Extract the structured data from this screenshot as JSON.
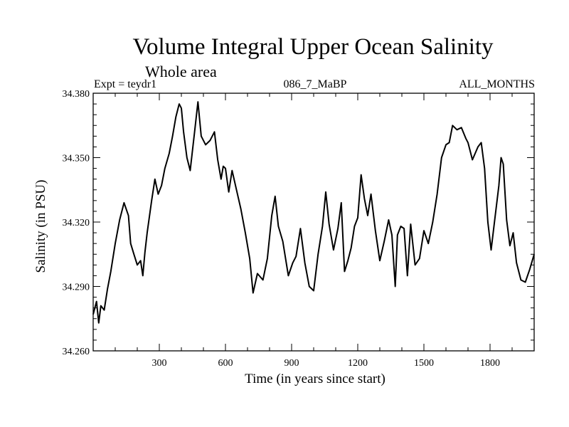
{
  "chart_data": {
    "type": "line",
    "title": "Volume Integral Upper Ocean Salinity",
    "subtitle": "Whole area",
    "info_left": "Expt = teydr1",
    "info_center": "086_7_MaBP",
    "info_right": "ALL_MONTHS",
    "xlabel": "Time (in years since start)",
    "ylabel": "Salinity (in PSU)",
    "xlim": [
      0,
      2000
    ],
    "ylim": [
      34.26,
      34.38
    ],
    "xticks": [
      "300",
      "600",
      "900",
      "1200",
      "1500",
      "1800"
    ],
    "xtick_values": [
      300,
      600,
      900,
      1200,
      1500,
      1800
    ],
    "yticks": [
      "34.260",
      "34.290",
      "34.320",
      "34.350",
      "34.380"
    ],
    "ytick_values": [
      34.26,
      34.29,
      34.32,
      34.35,
      34.38
    ],
    "series": [
      {
        "color": "#000000",
        "x": [
          0,
          15,
          25,
          35,
          50,
          65,
          80,
          100,
          120,
          140,
          160,
          170,
          185,
          200,
          215,
          225,
          235,
          245,
          265,
          280,
          295,
          310,
          325,
          345,
          360,
          375,
          390,
          400,
          410,
          425,
          440,
          460,
          475,
          490,
          510,
          530,
          550,
          565,
          580,
          590,
          600,
          615,
          630,
          650,
          670,
          690,
          710,
          725,
          745,
          770,
          790,
          810,
          825,
          840,
          860,
          885,
          905,
          920,
          940,
          960,
          980,
          1000,
          1020,
          1040,
          1055,
          1070,
          1090,
          1110,
          1125,
          1140,
          1155,
          1170,
          1185,
          1200,
          1215,
          1230,
          1245,
          1260,
          1280,
          1300,
          1320,
          1340,
          1355,
          1370,
          1380,
          1395,
          1410,
          1425,
          1440,
          1460,
          1480,
          1500,
          1520,
          1540,
          1560,
          1580,
          1600,
          1615,
          1630,
          1650,
          1670,
          1690,
          1700,
          1720,
          1745,
          1760,
          1775,
          1790,
          1805,
          1820,
          1840,
          1850,
          1860,
          1875,
          1890,
          1905,
          1920,
          1940,
          1960,
          1980,
          2000
        ],
        "y": [
          34.277,
          34.283,
          34.273,
          34.281,
          34.279,
          34.289,
          34.297,
          34.31,
          34.321,
          34.329,
          34.323,
          34.31,
          34.305,
          34.3,
          34.302,
          34.295,
          34.306,
          34.315,
          34.33,
          34.34,
          34.333,
          34.337,
          34.345,
          34.352,
          34.36,
          34.369,
          34.375,
          34.373,
          34.362,
          34.35,
          34.344,
          34.362,
          34.376,
          34.36,
          34.356,
          34.358,
          34.362,
          34.349,
          34.34,
          34.346,
          34.345,
          34.334,
          34.344,
          34.335,
          34.326,
          34.315,
          34.303,
          34.287,
          34.296,
          34.293,
          34.303,
          34.323,
          34.332,
          34.318,
          34.311,
          34.295,
          34.301,
          34.304,
          34.317,
          34.301,
          34.29,
          34.288,
          34.305,
          34.318,
          34.334,
          34.319,
          34.307,
          34.317,
          34.329,
          34.297,
          34.302,
          34.308,
          34.318,
          34.322,
          34.342,
          34.331,
          34.323,
          34.333,
          34.316,
          34.302,
          34.311,
          34.321,
          34.314,
          34.29,
          34.314,
          34.318,
          34.317,
          34.295,
          34.319,
          34.3,
          34.303,
          34.316,
          34.31,
          34.32,
          34.333,
          34.35,
          34.356,
          34.357,
          34.365,
          34.363,
          34.364,
          34.359,
          34.357,
          34.349,
          34.355,
          34.357,
          34.345,
          34.32,
          34.307,
          34.32,
          34.337,
          34.35,
          34.347,
          34.321,
          34.309,
          34.315,
          34.301,
          34.293,
          34.292,
          34.298,
          34.305
        ]
      }
    ]
  }
}
